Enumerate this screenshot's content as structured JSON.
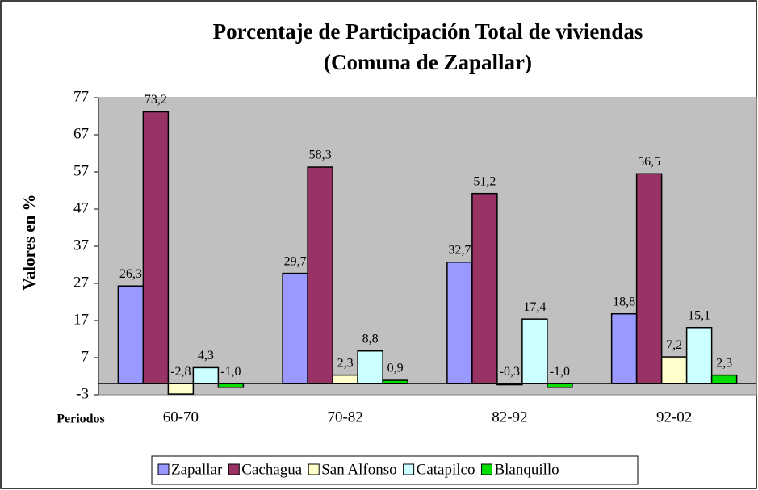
{
  "chart_data": {
    "type": "bar",
    "title": "Porcentaje de Participación Total de viviendas",
    "subtitle": "(Comuna de Zapallar)",
    "y_label": "Valores en %",
    "x_label": "Periodos",
    "categories": [
      "60-70",
      "70-82",
      "82-92",
      "92-02"
    ],
    "series": [
      {
        "name": "Zapallar",
        "color": "#9999ff",
        "values": [
          26.3,
          29.7,
          32.7,
          18.8
        ],
        "value_labels": [
          "26,3",
          "29,7",
          "32,7",
          "18,8"
        ]
      },
      {
        "name": "Cachagua",
        "color": "#993366",
        "values": [
          73.2,
          58.3,
          51.2,
          56.5
        ],
        "value_labels": [
          "73,2",
          "58,3",
          "51,2",
          "56,5"
        ]
      },
      {
        "name": "San Alfonso",
        "color": "#ffffcc",
        "values": [
          -2.8,
          2.3,
          -0.3,
          7.2
        ],
        "value_labels": [
          "-2,8",
          "2,3",
          "-0,3",
          "7,2"
        ]
      },
      {
        "name": "Catapilco",
        "color": "#ccffff",
        "values": [
          4.3,
          8.8,
          17.4,
          15.1
        ],
        "value_labels": [
          "4,3",
          "8,8",
          "17,4",
          "15,1"
        ]
      },
      {
        "name": "Blanquillo",
        "color": "#00dd00",
        "values": [
          -1.0,
          0.9,
          -1.0,
          2.3
        ],
        "value_labels": [
          "-1,0",
          "0,9",
          "-1,0",
          "2,3"
        ]
      }
    ],
    "ylim": [
      -3,
      77
    ],
    "yticks": [
      -3,
      7,
      17,
      27,
      37,
      47,
      57,
      67,
      77
    ],
    "grid": false,
    "legend": "bottom"
  }
}
